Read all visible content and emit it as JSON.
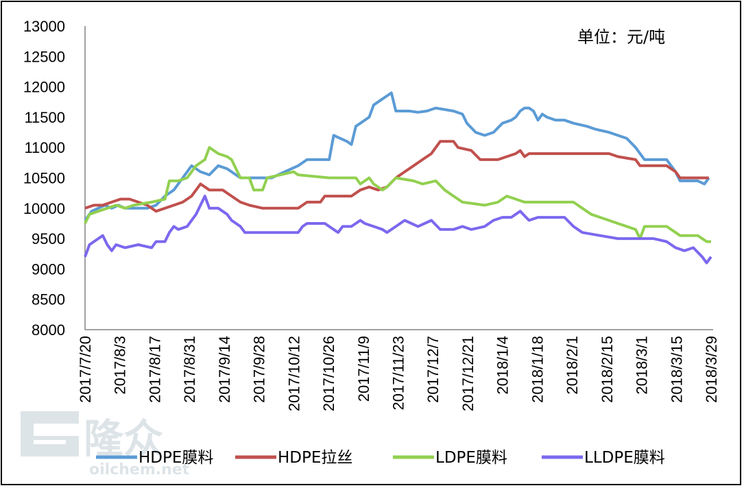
{
  "chart_data": {
    "type": "line",
    "unit_label": "单位：元/吨",
    "ylim": [
      8000,
      13000
    ],
    "y_ticks": [
      "13000",
      "12500",
      "12000",
      "11500",
      "11000",
      "10500",
      "10000",
      "9500",
      "9000",
      "8500",
      "8000"
    ],
    "x_ticks": [
      "2017/7/20",
      "2017/8/3",
      "2017/8/17",
      "2017/8/31",
      "2017/9/14",
      "2017/9/28",
      "2017/10/12",
      "2017/10/26",
      "2017/11/9",
      "2017/11/23",
      "2017/12/7",
      "2017/12/21",
      "2018/1/4",
      "2018/1/18",
      "2018/2/1",
      "2018/2/15",
      "2018/3/1",
      "2018/3/15",
      "2018/3/29"
    ],
    "grid": false,
    "legend_position": "bottom",
    "series": [
      {
        "name": "HDPE膜料",
        "color": "#5b9bd5",
        "points": [
          [
            0,
            9800
          ],
          [
            3,
            9950
          ],
          [
            6,
            10000
          ],
          [
            9,
            10050
          ],
          [
            12,
            10000
          ],
          [
            15,
            10050
          ],
          [
            18,
            10000
          ],
          [
            24,
            10000
          ],
          [
            28,
            10000
          ],
          [
            32,
            10050
          ],
          [
            36,
            10200
          ],
          [
            40,
            10300
          ],
          [
            44,
            10500
          ],
          [
            48,
            10700
          ],
          [
            52,
            10600
          ],
          [
            56,
            10550
          ],
          [
            60,
            10700
          ],
          [
            64,
            10650
          ],
          [
            68,
            10550
          ],
          [
            70,
            10500
          ],
          [
            84,
            10500
          ],
          [
            90,
            10600
          ],
          [
            96,
            10700
          ],
          [
            100,
            10800
          ],
          [
            110,
            10800
          ],
          [
            112,
            11200
          ],
          [
            115,
            11150
          ],
          [
            118,
            11100
          ],
          [
            120,
            11050
          ],
          [
            122,
            11350
          ],
          [
            124,
            11400
          ],
          [
            128,
            11500
          ],
          [
            130,
            11700
          ],
          [
            134,
            11800
          ],
          [
            138,
            11900
          ],
          [
            140,
            11600
          ],
          [
            146,
            11600
          ],
          [
            150,
            11580
          ],
          [
            154,
            11600
          ],
          [
            158,
            11650
          ],
          [
            166,
            11600
          ],
          [
            170,
            11550
          ],
          [
            172,
            11400
          ],
          [
            176,
            11250
          ],
          [
            180,
            11200
          ],
          [
            184,
            11250
          ],
          [
            188,
            11400
          ],
          [
            192,
            11450
          ],
          [
            194,
            11500
          ],
          [
            196,
            11600
          ],
          [
            198,
            11650
          ],
          [
            200,
            11650
          ],
          [
            202,
            11600
          ],
          [
            204,
            11450
          ],
          [
            206,
            11550
          ],
          [
            208,
            11500
          ],
          [
            212,
            11450
          ],
          [
            216,
            11450
          ],
          [
            220,
            11400
          ],
          [
            226,
            11350
          ],
          [
            230,
            11300
          ],
          [
            236,
            11250
          ],
          [
            244,
            11150
          ],
          [
            248,
            11000
          ],
          [
            252,
            10800
          ],
          [
            256,
            10800
          ],
          [
            262,
            10800
          ],
          [
            264,
            10700
          ],
          [
            266,
            10600
          ],
          [
            268,
            10450
          ],
          [
            276,
            10450
          ],
          [
            279,
            10400
          ],
          [
            281,
            10500
          ]
        ]
      },
      {
        "name": "HDPE拉丝",
        "color": "#c0504d",
        "points": [
          [
            0,
            10000
          ],
          [
            4,
            10050
          ],
          [
            8,
            10050
          ],
          [
            12,
            10100
          ],
          [
            16,
            10150
          ],
          [
            20,
            10150
          ],
          [
            24,
            10100
          ],
          [
            28,
            10050
          ],
          [
            32,
            9950
          ],
          [
            36,
            10000
          ],
          [
            40,
            10050
          ],
          [
            44,
            10100
          ],
          [
            48,
            10200
          ],
          [
            52,
            10400
          ],
          [
            56,
            10300
          ],
          [
            62,
            10300
          ],
          [
            66,
            10200
          ],
          [
            70,
            10100
          ],
          [
            74,
            10050
          ],
          [
            80,
            10000
          ],
          [
            96,
            10000
          ],
          [
            100,
            10100
          ],
          [
            106,
            10100
          ],
          [
            108,
            10200
          ],
          [
            120,
            10200
          ],
          [
            124,
            10300
          ],
          [
            128,
            10350
          ],
          [
            132,
            10300
          ],
          [
            136,
            10350
          ],
          [
            140,
            10500
          ],
          [
            144,
            10600
          ],
          [
            148,
            10700
          ],
          [
            152,
            10800
          ],
          [
            156,
            10900
          ],
          [
            160,
            11100
          ],
          [
            166,
            11100
          ],
          [
            168,
            11000
          ],
          [
            174,
            10950
          ],
          [
            178,
            10800
          ],
          [
            186,
            10800
          ],
          [
            190,
            10850
          ],
          [
            194,
            10900
          ],
          [
            196,
            10950
          ],
          [
            198,
            10850
          ],
          [
            200,
            10900
          ],
          [
            236,
            10900
          ],
          [
            240,
            10850
          ],
          [
            248,
            10800
          ],
          [
            250,
            10700
          ],
          [
            262,
            10700
          ],
          [
            264,
            10650
          ],
          [
            266,
            10600
          ],
          [
            268,
            10500
          ],
          [
            281,
            10500
          ]
        ]
      },
      {
        "name": "LDPE膜料",
        "color": "#92d050",
        "points": [
          [
            0,
            9750
          ],
          [
            2,
            9900
          ],
          [
            6,
            9950
          ],
          [
            10,
            10000
          ],
          [
            14,
            10050
          ],
          [
            18,
            10000
          ],
          [
            22,
            10050
          ],
          [
            30,
            10100
          ],
          [
            36,
            10150
          ],
          [
            38,
            10450
          ],
          [
            42,
            10450
          ],
          [
            46,
            10500
          ],
          [
            50,
            10700
          ],
          [
            54,
            10800
          ],
          [
            56,
            11000
          ],
          [
            60,
            10900
          ],
          [
            64,
            10850
          ],
          [
            66,
            10800
          ],
          [
            70,
            10500
          ],
          [
            74,
            10500
          ],
          [
            76,
            10300
          ],
          [
            80,
            10300
          ],
          [
            82,
            10500
          ],
          [
            88,
            10550
          ],
          [
            94,
            10600
          ],
          [
            96,
            10550
          ],
          [
            110,
            10500
          ],
          [
            122,
            10500
          ],
          [
            124,
            10400
          ],
          [
            128,
            10500
          ],
          [
            130,
            10400
          ],
          [
            134,
            10300
          ],
          [
            136,
            10350
          ],
          [
            140,
            10500
          ],
          [
            148,
            10450
          ],
          [
            152,
            10400
          ],
          [
            158,
            10450
          ],
          [
            162,
            10300
          ],
          [
            166,
            10200
          ],
          [
            170,
            10100
          ],
          [
            180,
            10050
          ],
          [
            186,
            10100
          ],
          [
            190,
            10200
          ],
          [
            194,
            10150
          ],
          [
            198,
            10100
          ],
          [
            220,
            10100
          ],
          [
            224,
            10000
          ],
          [
            228,
            9900
          ],
          [
            232,
            9850
          ],
          [
            236,
            9800
          ],
          [
            240,
            9750
          ],
          [
            244,
            9700
          ],
          [
            248,
            9650
          ],
          [
            250,
            9500
          ],
          [
            252,
            9700
          ],
          [
            262,
            9700
          ],
          [
            266,
            9600
          ],
          [
            268,
            9550
          ],
          [
            276,
            9550
          ],
          [
            280,
            9450
          ],
          [
            282,
            9450
          ]
        ]
      },
      {
        "name": "LLDPE膜料",
        "color": "#7b68ee",
        "points": [
          [
            0,
            9200
          ],
          [
            2,
            9400
          ],
          [
            4,
            9450
          ],
          [
            6,
            9500
          ],
          [
            8,
            9550
          ],
          [
            10,
            9400
          ],
          [
            12,
            9300
          ],
          [
            14,
            9400
          ],
          [
            18,
            9350
          ],
          [
            24,
            9400
          ],
          [
            30,
            9350
          ],
          [
            32,
            9450
          ],
          [
            36,
            9450
          ],
          [
            38,
            9600
          ],
          [
            40,
            9700
          ],
          [
            42,
            9650
          ],
          [
            46,
            9700
          ],
          [
            50,
            9900
          ],
          [
            54,
            10200
          ],
          [
            56,
            10000
          ],
          [
            60,
            10000
          ],
          [
            64,
            9900
          ],
          [
            66,
            9800
          ],
          [
            70,
            9700
          ],
          [
            72,
            9600
          ],
          [
            96,
            9600
          ],
          [
            98,
            9700
          ],
          [
            100,
            9750
          ],
          [
            108,
            9750
          ],
          [
            112,
            9650
          ],
          [
            114,
            9600
          ],
          [
            116,
            9700
          ],
          [
            120,
            9700
          ],
          [
            124,
            9800
          ],
          [
            126,
            9750
          ],
          [
            130,
            9700
          ],
          [
            134,
            9650
          ],
          [
            136,
            9600
          ],
          [
            140,
            9700
          ],
          [
            144,
            9800
          ],
          [
            150,
            9700
          ],
          [
            156,
            9800
          ],
          [
            160,
            9650
          ],
          [
            166,
            9650
          ],
          [
            170,
            9700
          ],
          [
            174,
            9650
          ],
          [
            180,
            9700
          ],
          [
            184,
            9800
          ],
          [
            188,
            9850
          ],
          [
            192,
            9850
          ],
          [
            196,
            9950
          ],
          [
            200,
            9800
          ],
          [
            204,
            9850
          ],
          [
            216,
            9850
          ],
          [
            220,
            9700
          ],
          [
            224,
            9600
          ],
          [
            232,
            9550
          ],
          [
            240,
            9500
          ],
          [
            256,
            9500
          ],
          [
            262,
            9450
          ],
          [
            266,
            9350
          ],
          [
            270,
            9300
          ],
          [
            274,
            9350
          ],
          [
            278,
            9200
          ],
          [
            280,
            9100
          ],
          [
            282,
            9200
          ]
        ]
      }
    ]
  },
  "watermark": {
    "brand": "隆众",
    "site": "oilchem.net"
  }
}
